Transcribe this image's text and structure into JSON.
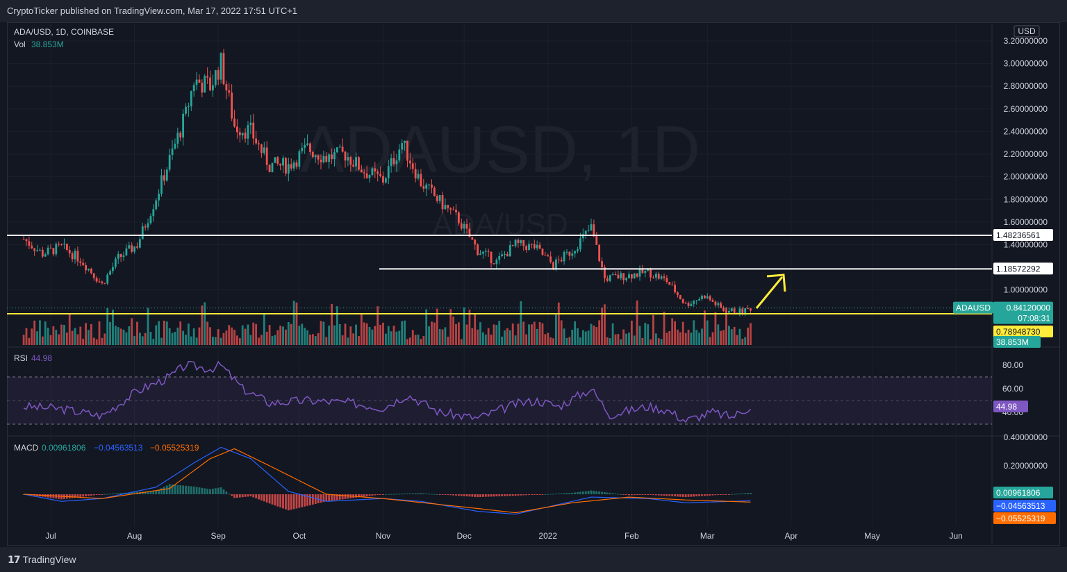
{
  "header": {
    "publisher_line": "CryptoTicker published on TradingView.com, Mar 17, 2022 17:51 UTC+1"
  },
  "footer": {
    "brand": "TradingView"
  },
  "legend": {
    "symbol": "ADA/USD, 1D, COINBASE",
    "vol_label": "Vol",
    "vol_value": "38.853M",
    "rsi_label": "RSI",
    "rsi_value": "44.98",
    "macd_label": "MACD",
    "macd_v1": "0.00961806",
    "macd_v2": "−0.04563513",
    "macd_v3": "−0.05525319"
  },
  "watermark": {
    "big": "ADAUSD, 1D",
    "small": "ADA/USD"
  },
  "price_scale": {
    "currency": "USD"
  },
  "colors": {
    "up": "#26a69a",
    "down": "#ef5350",
    "rsi": "#7e57c2",
    "macd": "#2962ff",
    "signal": "#ff6d00",
    "support": "#ffeb3b",
    "resistance": "#ffffff",
    "arrow": "#ffeb3b"
  },
  "price_labels": {
    "resistance1": "1.48236561",
    "resistance2": "1.18572292",
    "ticker": "ADAUSD",
    "last": "0.84120000",
    "countdown": "07:08:31",
    "support": "0.78948730",
    "vol_tag": "38.853M",
    "rsi_tag": "44.98",
    "macd_tag": "0.00961806",
    "macd_line_tag": "−0.04563513",
    "signal_tag": "−0.05525319"
  },
  "chart_data": [
    {
      "type": "candlestick",
      "title": "ADA/USD, 1D, COINBASE",
      "y_axis_ticks": [
        "3.20000000",
        "3.00000000",
        "2.80000000",
        "2.60000000",
        "2.40000000",
        "2.20000000",
        "2.00000000",
        "1.80000000",
        "1.60000000",
        "1.40000000",
        "1.00000000"
      ],
      "ylim": [
        0.78,
        3.2
      ],
      "x_axis_ticks": [
        "Jul",
        "Aug",
        "Sep",
        "Oct",
        "Nov",
        "Dec",
        "2022",
        "Feb",
        "Mar",
        "Apr",
        "May",
        "Jun"
      ],
      "close_path": [
        [
          "2021-06-21",
          1.45
        ],
        [
          "2021-06-28",
          1.32
        ],
        [
          "2021-07-05",
          1.38
        ],
        [
          "2021-07-12",
          1.27
        ],
        [
          "2021-07-20",
          1.05
        ],
        [
          "2021-07-26",
          1.28
        ],
        [
          "2021-08-02",
          1.4
        ],
        [
          "2021-08-09",
          1.82
        ],
        [
          "2021-08-14",
          2.15
        ],
        [
          "2021-08-20",
          2.55
        ],
        [
          "2021-08-23",
          2.85
        ],
        [
          "2021-08-29",
          2.8
        ],
        [
          "2021-09-02",
          3.0
        ],
        [
          "2021-09-07",
          2.45
        ],
        [
          "2021-09-13",
          2.4
        ],
        [
          "2021-09-20",
          2.1
        ],
        [
          "2021-09-27",
          2.1
        ],
        [
          "2021-10-04",
          2.25
        ],
        [
          "2021-10-11",
          2.17
        ],
        [
          "2021-10-18",
          2.2
        ],
        [
          "2021-10-25",
          2.05
        ],
        [
          "2021-11-01",
          1.97
        ],
        [
          "2021-11-08",
          2.3
        ],
        [
          "2021-11-15",
          1.95
        ],
        [
          "2021-11-22",
          1.78
        ],
        [
          "2021-11-29",
          1.62
        ],
        [
          "2021-12-06",
          1.35
        ],
        [
          "2021-12-13",
          1.25
        ],
        [
          "2021-12-20",
          1.4
        ],
        [
          "2021-12-27",
          1.38
        ],
        [
          "2022-01-03",
          1.22
        ],
        [
          "2022-01-10",
          1.35
        ],
        [
          "2022-01-17",
          1.55
        ],
        [
          "2022-01-22",
          1.1
        ],
        [
          "2022-01-31",
          1.13
        ],
        [
          "2022-02-07",
          1.16
        ],
        [
          "2022-02-14",
          1.08
        ],
        [
          "2022-02-21",
          0.87
        ],
        [
          "2022-02-28",
          0.95
        ],
        [
          "2022-03-07",
          0.82
        ],
        [
          "2022-03-14",
          0.81
        ],
        [
          "2022-03-17",
          0.84
        ]
      ],
      "horizontal_levels": [
        1.48236561,
        1.18572292,
        0.7894873
      ],
      "last_price": 0.8412
    },
    {
      "type": "line",
      "title": "RSI",
      "value": 44.98,
      "y_axis_ticks": [
        "80.00",
        "60.00",
        "40.00"
      ],
      "band": [
        30,
        70
      ],
      "path": [
        [
          "2021-06-21",
          45
        ],
        [
          "2021-07-05",
          43
        ],
        [
          "2021-07-20",
          37
        ],
        [
          "2021-08-02",
          58
        ],
        [
          "2021-08-14",
          70
        ],
        [
          "2021-08-20",
          80
        ],
        [
          "2021-08-29",
          77
        ],
        [
          "2021-09-02",
          80
        ],
        [
          "2021-09-10",
          60
        ],
        [
          "2021-09-20",
          48
        ],
        [
          "2021-10-04",
          50
        ],
        [
          "2021-10-20",
          48
        ],
        [
          "2021-11-01",
          44
        ],
        [
          "2021-11-10",
          55
        ],
        [
          "2021-11-22",
          40
        ],
        [
          "2021-12-06",
          35
        ],
        [
          "2021-12-20",
          47
        ],
        [
          "2021-12-28",
          50
        ],
        [
          "2022-01-05",
          45
        ],
        [
          "2022-01-17",
          60
        ],
        [
          "2022-01-24",
          38
        ],
        [
          "2022-02-07",
          45
        ],
        [
          "2022-02-14",
          42
        ],
        [
          "2022-02-21",
          33
        ],
        [
          "2022-03-03",
          40
        ],
        [
          "2022-03-10",
          36
        ],
        [
          "2022-03-17",
          44.98
        ]
      ]
    },
    {
      "type": "line",
      "title": "MACD",
      "y_axis_ticks": [
        "0.40000000",
        "0.20000000"
      ],
      "series": [
        {
          "name": "MACD",
          "last": -0.04563513
        },
        {
          "name": "Signal",
          "last": -0.05525319
        },
        {
          "name": "Histogram",
          "last": 0.00961806
        }
      ],
      "macd_path": [
        [
          "2021-06-21",
          0.0
        ],
        [
          "2021-07-05",
          -0.05
        ],
        [
          "2021-07-20",
          -0.03
        ],
        [
          "2021-08-09",
          0.05
        ],
        [
          "2021-08-23",
          0.22
        ],
        [
          "2021-09-02",
          0.33
        ],
        [
          "2021-09-13",
          0.25
        ],
        [
          "2021-09-27",
          0.02
        ],
        [
          "2021-10-11",
          -0.05
        ],
        [
          "2021-11-01",
          -0.03
        ],
        [
          "2021-11-15",
          -0.05
        ],
        [
          "2021-12-06",
          -0.12
        ],
        [
          "2021-12-20",
          -0.14
        ],
        [
          "2022-01-03",
          -0.08
        ],
        [
          "2022-01-17",
          -0.02
        ],
        [
          "2022-02-07",
          -0.03
        ],
        [
          "2022-02-21",
          -0.06
        ],
        [
          "2022-03-17",
          -0.04563513
        ]
      ],
      "signal_path": [
        [
          "2021-06-21",
          0.0
        ],
        [
          "2021-07-20",
          -0.03
        ],
        [
          "2021-08-14",
          0.04
        ],
        [
          "2021-08-29",
          0.25
        ],
        [
          "2021-09-07",
          0.32
        ],
        [
          "2021-09-20",
          0.2
        ],
        [
          "2021-10-11",
          0.0
        ],
        [
          "2021-11-01",
          -0.03
        ],
        [
          "2021-12-06",
          -0.1
        ],
        [
          "2021-12-20",
          -0.13
        ],
        [
          "2022-01-10",
          -0.06
        ],
        [
          "2022-01-31",
          -0.02
        ],
        [
          "2022-02-21",
          -0.04
        ],
        [
          "2022-03-17",
          -0.05525319
        ]
      ]
    }
  ]
}
